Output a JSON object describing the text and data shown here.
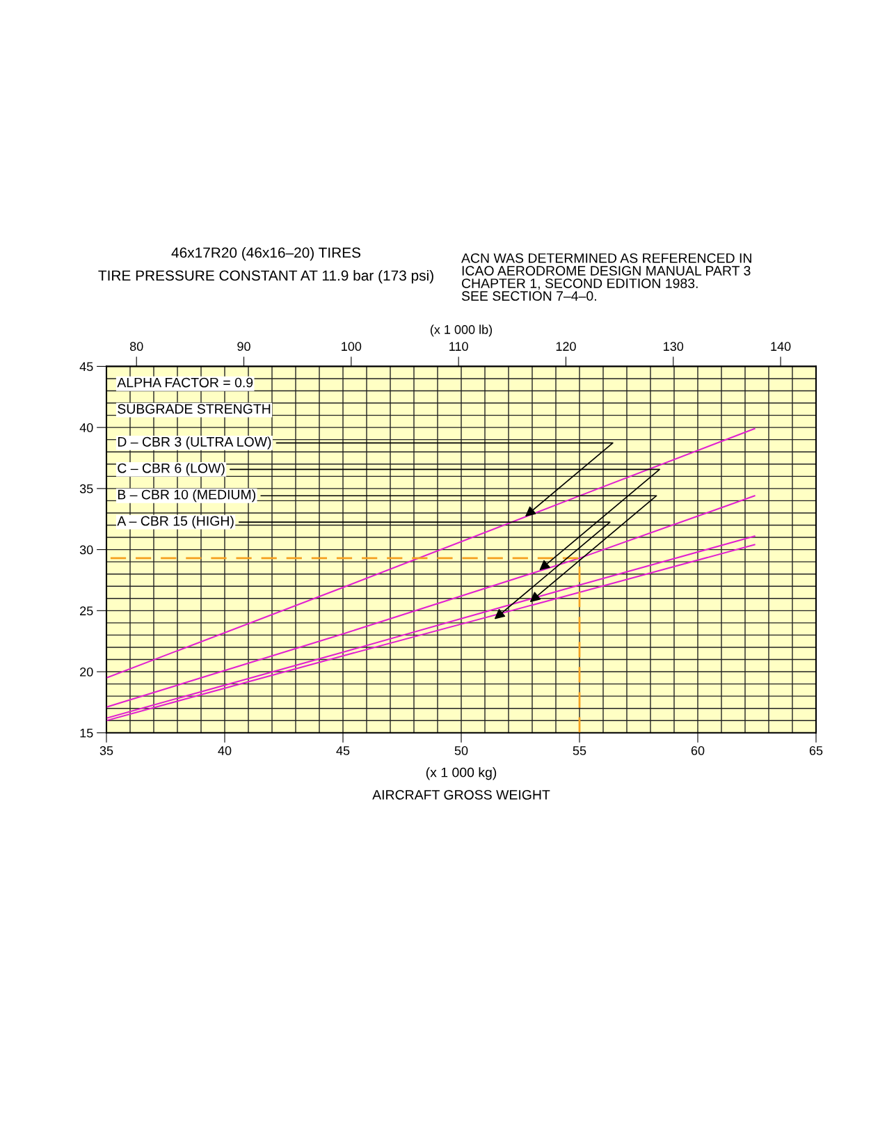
{
  "chart_data": {
    "type": "line",
    "title": "46x17R20 (46x16–20) TIRES",
    "subtitle": "TIRE PRESSURE CONSTANT AT 11.9 bar (173 psi)",
    "xlabel": "(x 1 000 kg)\nAIRCRAFT GROSS WEIGHT",
    "x2label": "(x 1 000 lb)",
    "xlim": [
      35,
      65
    ],
    "xticks": [
      35,
      40,
      45,
      50,
      55,
      60,
      65
    ],
    "x2lim": [
      77.2,
      143.3
    ],
    "x2ticks": [
      80,
      90,
      100,
      110,
      120,
      130,
      140
    ],
    "ylim": [
      15,
      45
    ],
    "yticks": [
      15,
      20,
      25,
      30,
      35,
      40,
      45
    ],
    "grid": true,
    "series": [
      {
        "color": "#e020d0",
        "x": [
          35,
          45,
          55,
          62.4
        ],
        "values": [
          19.5,
          26.9,
          34.4,
          39.9
        ]
      },
      {
        "color": "#e020d0",
        "x": [
          35,
          45,
          55,
          62.4
        ],
        "values": [
          17.1,
          23.1,
          29.3,
          34.4
        ]
      },
      {
        "color": "#e020d0",
        "x": [
          35,
          45,
          55,
          62.4
        ],
        "values": [
          16.2,
          21.6,
          27.1,
          31.1
        ]
      },
      {
        "color": "#e020d0",
        "x": [
          35,
          45,
          55,
          62.4
        ],
        "values": [
          16.0,
          21.3,
          26.5,
          30.4
        ]
      },
      {
        "color": "#f5a020",
        "line_style": "dashed",
        "x": [
          55,
          55,
          35
        ],
        "values": [
          15,
          29.3,
          29.3
        ]
      }
    ],
    "annotations": [
      "ALPHA FACTOR = 0.9",
      "SUBGRADE STRENGTH",
      {
        "text": "D – CBR 3 (ULTRA LOW)",
        "x": 52.7,
        "y": 32.7
      },
      {
        "text": "C – CBR 6 (LOW)",
        "x": 53.3,
        "y": 28.3
      },
      {
        "text": "B – CBR 10 (MEDIUM)",
        "x": 52.9,
        "y": 25.7
      },
      {
        "text": "A – CBR 15 (HIGH)",
        "x": 51.4,
        "y": 24.3
      },
      "ACN WAS DETERMINED AS REFERENCED IN\nICAO AERODROME DESIGN MANUAL PART 3\nCHAPTER 1, SECOND EDITION 1983.\nSEE SECTION 7–4–0."
    ]
  }
}
